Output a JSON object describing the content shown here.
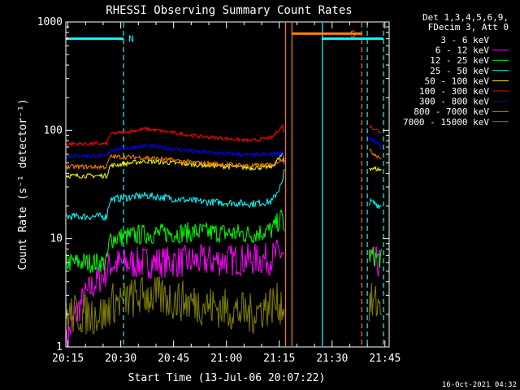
{
  "chart_data": {
    "type": "line",
    "title": "RHESSI Observing Summary Count Rates",
    "xlabel": "Start Time (13-Jul-06 20:07:22)",
    "ylabel": "Count Rate (s⁻¹ detector⁻¹)",
    "yscale": "log",
    "ylim": [
      1,
      1000
    ],
    "xlim": [
      7.4,
      99.2
    ],
    "x_unit": "minutes after 20:07",
    "yticks": [
      {
        "value": 1,
        "label": "1"
      },
      {
        "value": 10,
        "label": "10"
      },
      {
        "value": 100,
        "label": "100"
      },
      {
        "value": 1000,
        "label": "1000"
      }
    ],
    "xticks": [
      {
        "value": 8,
        "label": "20:15"
      },
      {
        "value": 23,
        "label": "20:30"
      },
      {
        "value": 38,
        "label": "20:45"
      },
      {
        "value": 53,
        "label": "21:00"
      },
      {
        "value": 68,
        "label": "21:15"
      },
      {
        "value": 83,
        "label": "21:30"
      },
      {
        "value": 98,
        "label": "21:45"
      }
    ],
    "legend_header": [
      "Det 1,3,4,5,6,9,",
      "FDecim 3, Att 0"
    ],
    "legend_position": "right",
    "series": [
      {
        "name": "3 - 6 keV",
        "color": "#000000",
        "values": []
      },
      {
        "name": "6 - 12 keV",
        "color": "#ff00ff",
        "x": [
          7.4,
          19,
          20,
          30,
          45,
          65,
          69,
          69.5
        ],
        "values": [
          1,
          5,
          5.8,
          6,
          6.2,
          6.5,
          7.5,
          6
        ]
      },
      {
        "name": "12 - 25 keV",
        "color": "#00ff00",
        "x": [
          7.4,
          19,
          20,
          30,
          45,
          60,
          66,
          69,
          69.5
        ],
        "values": [
          6,
          6,
          10,
          11,
          11.5,
          11,
          12,
          16,
          11
        ]
      },
      {
        "name": "25 - 50 keV",
        "color": "#00ffff",
        "x": [
          7.4,
          19,
          20,
          30,
          45,
          60,
          66,
          69,
          69.5
        ],
        "values": [
          16,
          16,
          23,
          25,
          22,
          21,
          22,
          33,
          45
        ]
      },
      {
        "name": "50 - 100 keV",
        "color": "#ffff00",
        "x": [
          7.4,
          19,
          20,
          30,
          45,
          60,
          66,
          69,
          69.5
        ],
        "values": [
          38,
          38,
          47,
          52,
          48,
          45,
          46,
          60,
          50
        ]
      },
      {
        "name": "100 - 300 keV",
        "color": "#ff0000",
        "x": [
          7.4,
          19,
          20,
          30,
          45,
          60,
          66,
          69,
          69.5
        ],
        "values": [
          75,
          75,
          92,
          103,
          88,
          80,
          86,
          110,
          90
        ]
      },
      {
        "name": "300 - 800 keV",
        "color": "#0000ff",
        "x": [
          7.4,
          19,
          20,
          30,
          45,
          60,
          66,
          69,
          69.5
        ],
        "values": [
          58,
          58,
          66,
          72,
          63,
          59,
          60,
          63,
          55
        ]
      },
      {
        "name": "800 - 7000 keV",
        "color": "#ff8000",
        "x": [
          7.4,
          19,
          20,
          30,
          45,
          60,
          66,
          69,
          69.5
        ],
        "values": [
          46,
          46,
          57,
          56,
          50,
          47,
          48,
          55,
          50
        ]
      },
      {
        "name": "7000 - 15000 keV",
        "color": "#808000",
        "x": [
          7.4,
          19,
          20,
          30,
          45,
          60,
          66,
          69,
          69.5
        ],
        "values": [
          2,
          2,
          2.5,
          3,
          2.5,
          2,
          2.5,
          2.5,
          2
        ]
      }
    ],
    "series_after_gap": {
      "x": [
        93.5,
        97
      ],
      "values": {
        "6 - 12 keV": [
          6,
          6
        ],
        "12 - 25 keV": [
          7,
          6.5
        ],
        "25 - 50 keV": [
          22,
          20
        ],
        "50 - 100 keV": [
          45,
          43
        ],
        "100 - 300 keV": [
          110,
          95
        ],
        "300 - 800 keV": [
          85,
          70
        ],
        "800 - 7000 keV": [
          65,
          55
        ],
        "7000 - 15000 keV": [
          2.5,
          2.5
        ]
      }
    },
    "flags": [
      {
        "label": "N",
        "color": "#00ffff",
        "x0": 7.4,
        "x1": 23.8,
        "y": 700
      },
      {
        "label": "S",
        "color": "#ff8000",
        "x0": 71.6,
        "x1": 91.4,
        "y": 780
      },
      {
        "label": "",
        "color": "#00ffff",
        "x0": 80.2,
        "x1": 97.6,
        "y": 700
      }
    ],
    "vertical_markers": [
      {
        "x": 23.8,
        "color": "#00ffff",
        "style": "dashed"
      },
      {
        "x": 69.8,
        "color": "#ff8000",
        "style": "solid"
      },
      {
        "x": 71.6,
        "color": "#ff8000",
        "style": "solid"
      },
      {
        "x": 80.2,
        "color": "#00ffff",
        "style": "solid"
      },
      {
        "x": 91.4,
        "color": "#ff8000",
        "style": "dashed"
      },
      {
        "x": 93.0,
        "color": "#00ffff",
        "style": "dashed"
      },
      {
        "x": 97.6,
        "color": "#00ffff",
        "style": "dashed"
      }
    ],
    "footer_timestamp": "16-Oct-2021 04:32"
  }
}
